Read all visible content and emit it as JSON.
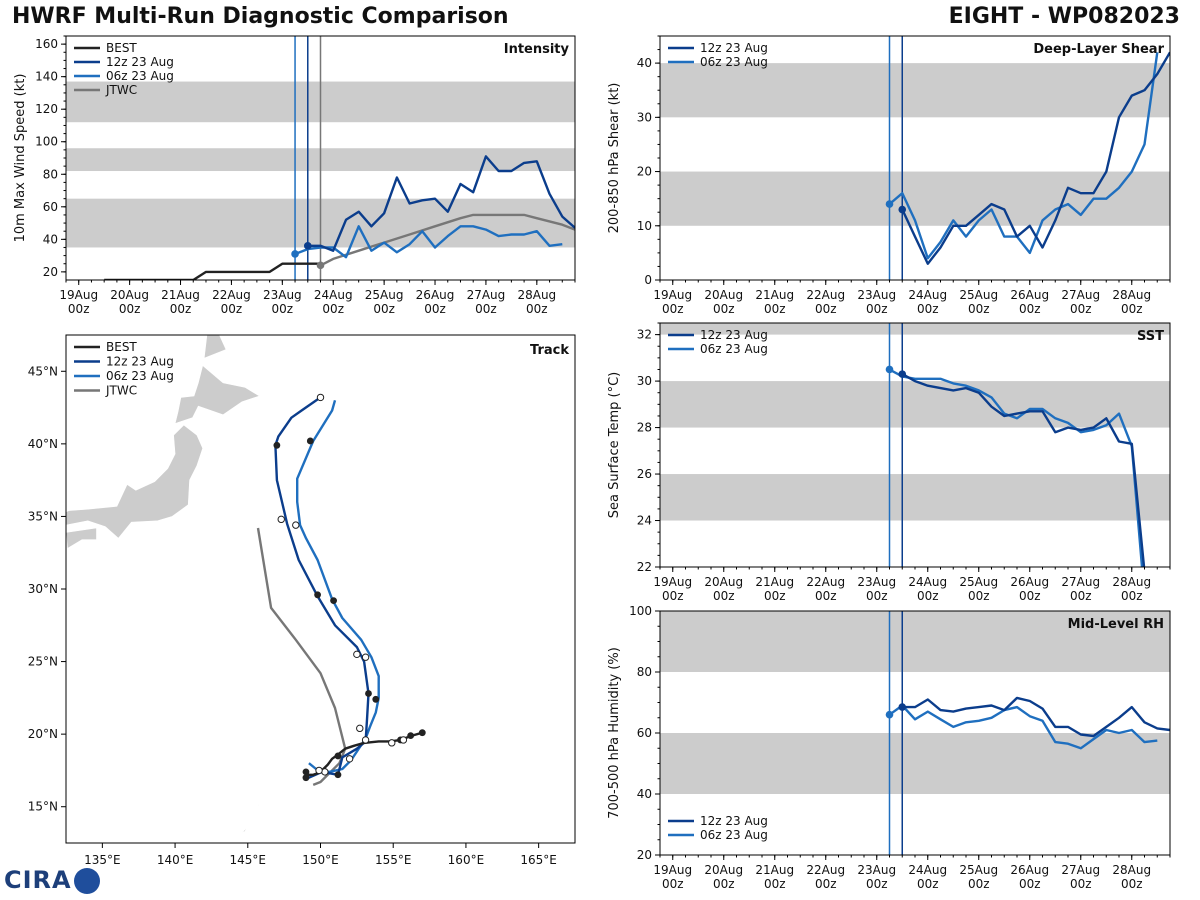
{
  "header": {
    "title_left": "HWRF Multi-Run Diagnostic Comparison",
    "title_right": "EIGHT - WP082023"
  },
  "logo": {
    "text": "CIRA"
  },
  "colors": {
    "best": "#222222",
    "run12": "#0b3d8c",
    "run06": "#1f6fbf",
    "jtwc": "#777777",
    "band": "#cccccc",
    "land": "#cccccc"
  },
  "time_axis": {
    "ticks": [
      0,
      1,
      2,
      3,
      4,
      5,
      6,
      7,
      8,
      9
    ],
    "day_labels": [
      "19Aug",
      "20Aug",
      "21Aug",
      "22Aug",
      "23Aug",
      "24Aug",
      "25Aug",
      "26Aug",
      "27Aug",
      "28Aug"
    ],
    "hour_labels": [
      "00z",
      "00z",
      "00z",
      "00z",
      "00z",
      "00z",
      "00z",
      "00z",
      "00z",
      "00z"
    ],
    "xlim": [
      -0.25,
      9.75
    ],
    "vlines": [
      {
        "x": 4.25,
        "series": "run06"
      },
      {
        "x": 4.5,
        "series": "run12"
      },
      {
        "x": 4.75,
        "series": "jtwc"
      }
    ]
  },
  "chart_data": [
    {
      "id": "intensity",
      "type": "line",
      "title": "Intensity",
      "ylabel": "10m Max Wind Speed (kt)",
      "ylim": [
        15,
        165
      ],
      "yticks": [
        20,
        40,
        60,
        80,
        100,
        120,
        140,
        160
      ],
      "bands": [
        [
          35,
          65
        ],
        [
          82,
          96
        ],
        [
          112,
          137
        ]
      ],
      "legend_position": "top-left",
      "series": [
        {
          "key": "best",
          "name": "BEST",
          "x": [
            0.5,
            1,
            2,
            2.25,
            2.5,
            3,
            3.75,
            4,
            4.25,
            4.5,
            4.75
          ],
          "y": [
            15,
            15,
            15,
            15,
            20,
            20,
            20,
            25,
            25,
            25,
            25
          ]
        },
        {
          "key": "run12",
          "name": "12z 23 Aug",
          "x": [
            4.5,
            4.75,
            5,
            5.25,
            5.5,
            5.75,
            6,
            6.25,
            6.5,
            6.75,
            7,
            7.25,
            7.5,
            7.75,
            8,
            8.25,
            8.5,
            8.75,
            9,
            9.25,
            9.5,
            9.75
          ],
          "y": [
            36,
            36,
            33,
            52,
            57,
            48,
            56,
            78,
            62,
            64,
            65,
            57,
            74,
            69,
            91,
            82,
            82,
            87,
            88,
            68,
            54,
            47
          ]
        },
        {
          "key": "run06",
          "name": "06z 23 Aug",
          "x": [
            4.25,
            4.5,
            4.75,
            5,
            5.25,
            5.5,
            5.75,
            6,
            6.25,
            6.5,
            6.75,
            7,
            7.25,
            7.5,
            7.75,
            8,
            8.25,
            8.5,
            8.75,
            9,
            9.25,
            9.5
          ],
          "y": [
            31,
            34,
            35,
            35,
            29,
            48,
            33,
            38,
            32,
            37,
            45,
            35,
            42,
            48,
            48,
            46,
            42,
            43,
            43,
            45,
            36,
            37
          ]
        },
        {
          "key": "jtwc",
          "name": "JTWC",
          "x": [
            4.75,
            5,
            5.5,
            6,
            6.5,
            7,
            7.5,
            7.75,
            8,
            8.5,
            8.75,
            9,
            9.5,
            9.75
          ],
          "y": [
            24,
            28,
            33,
            38,
            43,
            48,
            53,
            55,
            55,
            55,
            55,
            53,
            49,
            46
          ]
        }
      ],
      "markers": [
        {
          "series": "run06",
          "x": 4.25,
          "y": 31
        },
        {
          "series": "run12",
          "x": 4.5,
          "y": 36
        },
        {
          "series": "jtwc",
          "x": 4.75,
          "y": 24
        }
      ]
    },
    {
      "id": "shear",
      "type": "line",
      "title": "Deep-Layer Shear",
      "ylabel": "200-850 hPa Shear (kt)",
      "ylim": [
        0,
        45
      ],
      "yticks": [
        0,
        10,
        20,
        30,
        40
      ],
      "bands": [
        [
          10,
          20
        ],
        [
          30,
          40
        ]
      ],
      "legend_position": "top-left",
      "series": [
        {
          "key": "run12",
          "name": "12z 23 Aug",
          "x": [
            4.5,
            4.75,
            5,
            5.25,
            5.5,
            5.75,
            6,
            6.25,
            6.5,
            6.75,
            7,
            7.25,
            7.5,
            7.75,
            8,
            8.25,
            8.5,
            8.75,
            9,
            9.25,
            9.5,
            9.75
          ],
          "y": [
            13,
            8,
            3,
            6,
            10,
            10,
            12,
            14,
            13,
            8,
            10,
            6,
            11,
            17,
            16,
            16,
            20,
            30,
            34,
            35,
            38,
            42
          ]
        },
        {
          "key": "run06",
          "name": "06z 23 Aug",
          "x": [
            4.25,
            4.5,
            4.75,
            5,
            5.25,
            5.5,
            5.75,
            6,
            6.25,
            6.5,
            6.75,
            7,
            7.25,
            7.5,
            7.75,
            8,
            8.25,
            8.5,
            8.75,
            9,
            9.25,
            9.5
          ],
          "y": [
            14,
            16,
            11,
            4,
            7,
            11,
            8,
            11,
            13,
            8,
            8,
            5,
            11,
            13,
            14,
            12,
            15,
            15,
            17,
            20,
            25,
            42
          ]
        }
      ],
      "markers": [
        {
          "series": "run06",
          "x": 4.25,
          "y": 14
        },
        {
          "series": "run12",
          "x": 4.5,
          "y": 13
        }
      ]
    },
    {
      "id": "sst",
      "type": "line",
      "title": "SST",
      "ylabel": "Sea Surface Temp (°C)",
      "ylim": [
        22,
        32.5
      ],
      "yticks": [
        22,
        24,
        26,
        28,
        30,
        32
      ],
      "bands": [
        [
          24,
          26
        ],
        [
          28,
          30
        ],
        [
          32,
          32.5
        ]
      ],
      "legend_position": "top-left",
      "series": [
        {
          "key": "run12",
          "name": "12z 23 Aug",
          "x": [
            4.5,
            4.75,
            5,
            5.25,
            5.5,
            5.75,
            6,
            6.25,
            6.5,
            6.75,
            7,
            7.25,
            7.5,
            7.75,
            8,
            8.25,
            8.5,
            8.75,
            9,
            9.25
          ],
          "y": [
            30.3,
            30.0,
            29.8,
            29.7,
            29.6,
            29.7,
            29.5,
            28.9,
            28.5,
            28.6,
            28.7,
            28.7,
            27.8,
            28.0,
            27.9,
            28.0,
            28.4,
            27.4,
            27.3,
            21.8
          ]
        },
        {
          "key": "run06",
          "name": "06z 23 Aug",
          "x": [
            4.25,
            4.5,
            4.75,
            5,
            5.25,
            5.5,
            5.75,
            6,
            6.25,
            6.5,
            6.75,
            7,
            7.25,
            7.5,
            7.75,
            8,
            8.25,
            8.5,
            8.75,
            9,
            9.2
          ],
          "y": [
            30.5,
            30.2,
            30.1,
            30.1,
            30.1,
            29.9,
            29.8,
            29.6,
            29.3,
            28.6,
            28.4,
            28.8,
            28.8,
            28.4,
            28.2,
            27.8,
            27.9,
            28.1,
            28.6,
            27.2,
            22.0
          ]
        }
      ],
      "markers": [
        {
          "series": "run06",
          "x": 4.25,
          "y": 30.5
        },
        {
          "series": "run12",
          "x": 4.5,
          "y": 30.3
        }
      ]
    },
    {
      "id": "rh",
      "type": "line",
      "title": "Mid-Level RH",
      "ylabel": "700-500 hPa Humidity (%)",
      "ylim": [
        20,
        100
      ],
      "yticks": [
        20,
        40,
        60,
        80,
        100
      ],
      "bands": [
        [
          40,
          60
        ],
        [
          80,
          100
        ]
      ],
      "legend_position": "bottom-left",
      "series": [
        {
          "key": "run12",
          "name": "12z 23 Aug",
          "x": [
            4.5,
            4.75,
            5,
            5.25,
            5.5,
            5.75,
            6,
            6.25,
            6.5,
            6.75,
            7,
            7.25,
            7.5,
            7.75,
            8,
            8.25,
            8.5,
            8.75,
            9,
            9.25,
            9.5,
            9.75
          ],
          "y": [
            68.5,
            68.5,
            71,
            67.5,
            67,
            68,
            68.5,
            69,
            67.5,
            71.5,
            70.5,
            68,
            62,
            62,
            59.5,
            59,
            62,
            65,
            68.5,
            63.5,
            61.5,
            61
          ]
        },
        {
          "key": "run06",
          "name": "06z 23 Aug",
          "x": [
            4.25,
            4.5,
            4.75,
            5,
            5.25,
            5.5,
            5.75,
            6,
            6.25,
            6.5,
            6.75,
            7,
            7.25,
            7.5,
            7.75,
            8,
            8.25,
            8.5,
            8.75,
            9,
            9.25,
            9.5
          ],
          "y": [
            66,
            69,
            64.5,
            67,
            64.5,
            62,
            63.5,
            64,
            65,
            67.5,
            68.5,
            65.5,
            64,
            57,
            56.5,
            55,
            58,
            61,
            60,
            61,
            57,
            57.5
          ]
        }
      ],
      "markers": [
        {
          "series": "run06",
          "x": 4.25,
          "y": 66
        },
        {
          "series": "run12",
          "x": 4.5,
          "y": 68.5
        }
      ]
    },
    {
      "id": "track",
      "type": "line",
      "title": "Track",
      "xlim": [
        132.5,
        167.5
      ],
      "ylim": [
        12.5,
        47.5
      ],
      "xticks": [
        135,
        140,
        145,
        150,
        155,
        160,
        165
      ],
      "yticks": [
        15,
        20,
        25,
        30,
        35,
        40,
        45
      ],
      "xtick_labels": [
        "135°E",
        "140°E",
        "145°E",
        "150°E",
        "155°E",
        "160°E",
        "165°E"
      ],
      "ytick_labels": [
        "15°N",
        "20°N",
        "25°N",
        "30°N",
        "35°N",
        "40°N",
        "45°N"
      ],
      "legend_position": "top-left",
      "series": [
        {
          "key": "best",
          "name": "BEST",
          "lon": [
            157.0,
            156.3,
            155.5,
            154.8,
            154.0,
            153.0,
            152.3,
            151.7,
            151.2,
            150.8,
            150.5,
            150.2,
            149.8,
            149.5,
            149.2,
            149.0
          ],
          "lat": [
            20.1,
            19.9,
            19.6,
            19.5,
            19.5,
            19.4,
            19.2,
            19.0,
            18.6,
            18.3,
            17.9,
            17.6,
            17.3,
            17.2,
            17.2,
            17.3
          ]
        },
        {
          "key": "run12",
          "name": "12z 23 Aug",
          "lon": [
            149.0,
            149.2,
            150.1,
            151.2,
            151.5,
            152.5,
            153.1,
            153.2,
            153.3,
            153.0,
            152.5,
            151.0,
            149.8,
            148.5,
            147.7,
            147.0,
            146.9,
            147.1,
            148.0,
            148.7,
            150.0
          ],
          "lat": [
            17.0,
            17.0,
            17.4,
            17.2,
            18.4,
            19.0,
            19.5,
            21.0,
            22.8,
            25.0,
            26.0,
            27.5,
            29.5,
            32.0,
            34.5,
            37.5,
            39.9,
            40.5,
            41.8,
            42.3,
            43.2
          ]
        },
        {
          "key": "run06",
          "name": "06z 23 Aug",
          "lon": [
            149.2,
            149.7,
            150.6,
            151.5,
            152.1,
            153.1,
            153.4,
            153.8,
            154.0,
            154.0,
            153.5,
            152.8,
            151.5,
            150.8,
            149.8,
            149.0,
            148.6,
            148.4,
            148.4,
            149.5,
            150.8,
            151.0
          ],
          "lat": [
            18.0,
            17.6,
            17.4,
            17.6,
            18.2,
            19.7,
            20.5,
            21.5,
            22.5,
            24.0,
            25.3,
            26.5,
            28.0,
            29.3,
            32.0,
            33.5,
            34.4,
            36.0,
            37.6,
            40.2,
            42.3,
            43.0
          ]
        },
        {
          "key": "jtwc",
          "name": "JTWC",
          "lon": [
            149.5,
            150.0,
            151.3,
            151.7,
            151.0,
            150.0,
            148.3,
            146.6,
            145.7
          ],
          "lat": [
            16.5,
            16.7,
            18.0,
            19.0,
            21.8,
            24.2,
            26.5,
            28.7,
            34.2
          ]
        }
      ],
      "filled_points": [
        {
          "lon": 157.0,
          "lat": 20.1
        },
        {
          "lon": 156.2,
          "lat": 19.9
        },
        {
          "lon": 155.5,
          "lat": 19.6
        },
        {
          "lon": 151.2,
          "lat": 17.2
        },
        {
          "lon": 149.0,
          "lat": 17.0
        },
        {
          "lon": 151.2,
          "lat": 18.5
        },
        {
          "lon": 149.0,
          "lat": 17.4
        },
        {
          "lon": 153.8,
          "lat": 22.4
        },
        {
          "lon": 153.3,
          "lat": 22.8
        },
        {
          "lon": 150.9,
          "lat": 29.2
        },
        {
          "lon": 149.8,
          "lat": 29.6
        },
        {
          "lon": 147.0,
          "lat": 39.9
        },
        {
          "lon": 149.3,
          "lat": 40.2
        }
      ],
      "open_points": [
        {
          "lon": 150.0,
          "lat": 43.2
        },
        {
          "lon": 147.3,
          "lat": 34.8
        },
        {
          "lon": 148.3,
          "lat": 34.4
        },
        {
          "lon": 152.5,
          "lat": 25.5
        },
        {
          "lon": 153.1,
          "lat": 25.3
        },
        {
          "lon": 152.7,
          "lat": 20.4
        },
        {
          "lon": 153.1,
          "lat": 19.6
        },
        {
          "lon": 154.9,
          "lat": 19.4
        },
        {
          "lon": 155.7,
          "lat": 19.6
        },
        {
          "lon": 152.0,
          "lat": 18.3
        },
        {
          "lon": 150.3,
          "lat": 17.4
        },
        {
          "lon": 149.9,
          "lat": 17.5
        }
      ]
    }
  ]
}
